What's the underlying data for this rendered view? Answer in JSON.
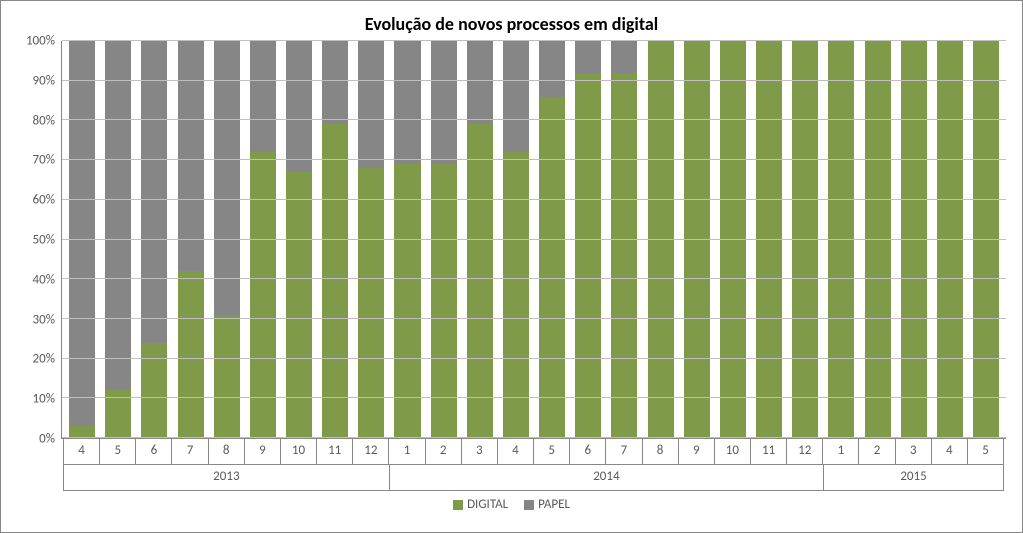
{
  "chart": {
    "type": "stacked-bar-100pct",
    "title": "Evolução de novos processos em digital",
    "title_fontsize": 18,
    "title_fontweight": "bold",
    "title_color": "#000000",
    "background_color": "#ffffff",
    "border_color": "#888888",
    "grid_color": "#bfbfbf",
    "axis_line_color": "#888888",
    "tick_label_color": "#595959",
    "tick_label_fontsize": 13,
    "y": {
      "min": 0,
      "max": 100,
      "tick_step": 10,
      "ticks": [
        "0%",
        "10%",
        "20%",
        "30%",
        "40%",
        "50%",
        "60%",
        "70%",
        "80%",
        "90%",
        "100%"
      ]
    },
    "series": [
      {
        "key": "digital",
        "label": "DIGITAL",
        "color": "#7f9a48"
      },
      {
        "key": "papel",
        "label": "PAPEL",
        "color": "#868686"
      }
    ],
    "legend_position": "bottom-center",
    "bar_width_pct": 72,
    "groups": [
      {
        "label": "2013",
        "count": 9
      },
      {
        "label": "2014",
        "count": 12
      },
      {
        "label": "2015",
        "count": 5
      }
    ],
    "points": [
      {
        "month": "4",
        "year": "2013",
        "digital": 3,
        "papel": 97
      },
      {
        "month": "5",
        "year": "2013",
        "digital": 12,
        "papel": 88
      },
      {
        "month": "6",
        "year": "2013",
        "digital": 24,
        "papel": 76
      },
      {
        "month": "7",
        "year": "2013",
        "digital": 42,
        "papel": 58
      },
      {
        "month": "8",
        "year": "2013",
        "digital": 31,
        "papel": 69
      },
      {
        "month": "9",
        "year": "2013",
        "digital": 72,
        "papel": 28
      },
      {
        "month": "10",
        "year": "2013",
        "digital": 67,
        "papel": 33
      },
      {
        "month": "11",
        "year": "2013",
        "digital": 79,
        "papel": 21
      },
      {
        "month": "12",
        "year": "2013",
        "digital": 68,
        "papel": 32
      },
      {
        "month": "1",
        "year": "2014",
        "digital": 69,
        "papel": 31
      },
      {
        "month": "2",
        "year": "2014",
        "digital": 69,
        "papel": 31
      },
      {
        "month": "3",
        "year": "2014",
        "digital": 79,
        "papel": 21
      },
      {
        "month": "4",
        "year": "2014",
        "digital": 72,
        "papel": 28
      },
      {
        "month": "5",
        "year": "2014",
        "digital": 86,
        "papel": 14
      },
      {
        "month": "6",
        "year": "2014",
        "digital": 92,
        "papel": 8
      },
      {
        "month": "7",
        "year": "2014",
        "digital": 92,
        "papel": 8
      },
      {
        "month": "8",
        "year": "2014",
        "digital": 100,
        "papel": 0
      },
      {
        "month": "9",
        "year": "2014",
        "digital": 100,
        "papel": 0
      },
      {
        "month": "10",
        "year": "2014",
        "digital": 100,
        "papel": 0
      },
      {
        "month": "11",
        "year": "2014",
        "digital": 100,
        "papel": 0
      },
      {
        "month": "12",
        "year": "2014",
        "digital": 100,
        "papel": 0
      },
      {
        "month": "1",
        "year": "2015",
        "digital": 100,
        "papel": 0
      },
      {
        "month": "2",
        "year": "2015",
        "digital": 100,
        "papel": 0
      },
      {
        "month": "3",
        "year": "2015",
        "digital": 100,
        "papel": 0
      },
      {
        "month": "4",
        "year": "2015",
        "digital": 100,
        "papel": 0
      },
      {
        "month": "5",
        "year": "2015",
        "digital": 100,
        "papel": 0
      }
    ]
  }
}
